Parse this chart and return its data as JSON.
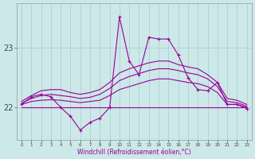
{
  "background_color": "#cce8e8",
  "line_color": "#990099",
  "grid_color": "#aacccc",
  "xlabel": "Windchill (Refroidissement éolien,°C)",
  "ylabel_ticks": [
    22,
    23
  ],
  "xlim": [
    -0.5,
    23.5
  ],
  "ylim": [
    21.45,
    23.75
  ],
  "xticks": [
    0,
    1,
    2,
    3,
    4,
    5,
    6,
    7,
    8,
    9,
    10,
    11,
    12,
    13,
    14,
    15,
    16,
    17,
    18,
    19,
    20,
    21,
    22,
    23
  ],
  "series_flat": [
    22.0,
    22.0,
    22.0,
    22.0,
    22.0,
    22.0,
    22.0,
    22.0,
    22.0,
    22.0,
    22.0,
    22.0,
    22.0,
    22.0,
    22.0,
    22.0,
    22.0,
    22.0,
    22.0,
    22.0,
    22.0,
    22.0,
    22.0,
    22.0
  ],
  "series_low": [
    22.05,
    22.1,
    22.12,
    22.13,
    22.12,
    22.1,
    22.08,
    22.1,
    22.12,
    22.2,
    22.3,
    22.35,
    22.4,
    22.45,
    22.48,
    22.48,
    22.45,
    22.42,
    22.4,
    22.35,
    22.25,
    22.05,
    22.05,
    22.0
  ],
  "series_mid": [
    22.07,
    22.15,
    22.2,
    22.22,
    22.2,
    22.18,
    22.15,
    22.17,
    22.22,
    22.32,
    22.45,
    22.52,
    22.57,
    22.62,
    22.65,
    22.65,
    22.62,
    22.58,
    22.55,
    22.48,
    22.35,
    22.1,
    22.08,
    22.02
  ],
  "series_high": [
    22.1,
    22.2,
    22.28,
    22.3,
    22.3,
    22.25,
    22.22,
    22.25,
    22.3,
    22.42,
    22.58,
    22.65,
    22.7,
    22.75,
    22.78,
    22.78,
    22.72,
    22.68,
    22.65,
    22.55,
    22.42,
    22.15,
    22.12,
    22.05
  ],
  "series_main": [
    22.05,
    22.18,
    22.22,
    22.18,
    22.0,
    21.85,
    21.62,
    21.75,
    21.82,
    22.0,
    23.52,
    22.78,
    22.55,
    23.18,
    23.15,
    23.15,
    22.88,
    22.5,
    22.3,
    22.28,
    22.42,
    22.05,
    22.05,
    21.98
  ]
}
